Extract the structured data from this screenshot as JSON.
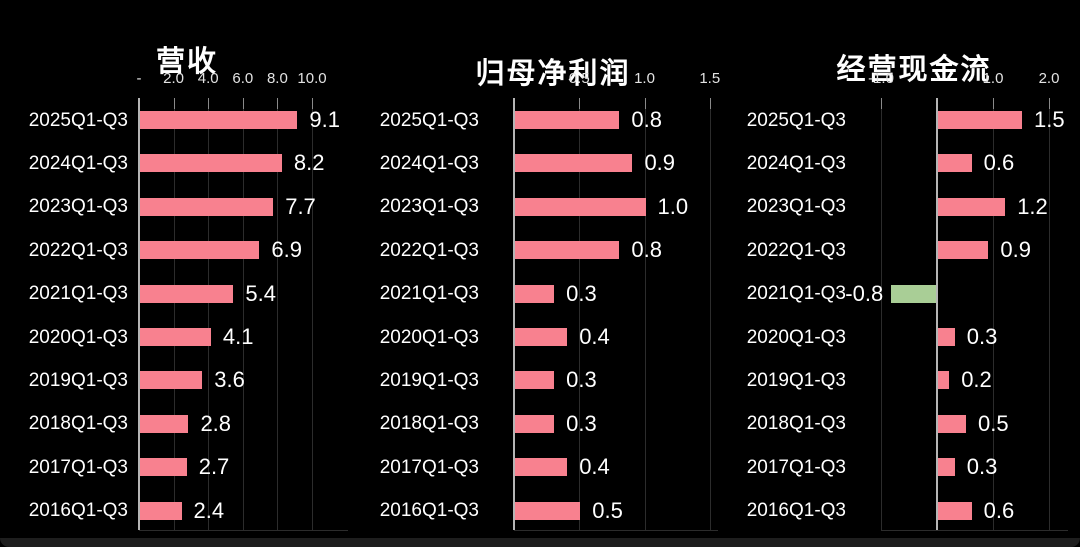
{
  "page": {
    "background": "#000000",
    "bottom_edge_color": "#1e1e1e"
  },
  "colors": {
    "bar_positive": "#F8818F",
    "bar_negative": "#A9CE96",
    "text": "#FFFFFF",
    "grid": "#2c2c2c",
    "tick": "#8a8a8a",
    "axis": "#b5b5b5"
  },
  "chart_data": [
    {
      "type": "bar",
      "orientation": "horizontal",
      "title": "营收",
      "grid": true,
      "legend": null,
      "xlim": [
        0,
        10
      ],
      "tick_labels": [
        "-",
        "2.0",
        "4.0",
        "6.0",
        "8.0",
        "10.0"
      ],
      "tick_values": [
        0,
        2,
        4,
        6,
        8,
        10
      ],
      "categories": [
        "2025Q1-Q3",
        "2024Q1-Q3",
        "2023Q1-Q3",
        "2022Q1-Q3",
        "2021Q1-Q3",
        "2020Q1-Q3",
        "2019Q1-Q3",
        "2018Q1-Q3",
        "2017Q1-Q3",
        "2016Q1-Q3"
      ],
      "values": [
        9.1,
        8.2,
        7.7,
        6.9,
        5.4,
        4.1,
        3.6,
        2.8,
        2.7,
        2.4
      ],
      "value_labels": [
        "9.1",
        "8.2",
        "7.7",
        "6.9",
        "5.4",
        "4.1",
        "3.6",
        "2.8",
        "2.7",
        "2.4"
      ]
    },
    {
      "type": "bar",
      "orientation": "horizontal",
      "title": "归母净利润",
      "grid": true,
      "legend": null,
      "xlim": [
        0,
        1.5
      ],
      "tick_labels": [
        "-",
        "0.5",
        "1.0",
        "1.5"
      ],
      "tick_values": [
        0,
        0.5,
        1,
        1.5
      ],
      "categories": [
        "2025Q1-Q3",
        "2024Q1-Q3",
        "2023Q1-Q3",
        "2022Q1-Q3",
        "2021Q1-Q3",
        "2020Q1-Q3",
        "2019Q1-Q3",
        "2018Q1-Q3",
        "2017Q1-Q3",
        "2016Q1-Q3"
      ],
      "values": [
        0.8,
        0.9,
        1.0,
        0.8,
        0.3,
        0.4,
        0.3,
        0.3,
        0.4,
        0.5
      ],
      "value_labels": [
        "0.8",
        "0.9",
        "1.0",
        "0.8",
        "0.3",
        "0.4",
        "0.3",
        "0.3",
        "0.4",
        "0.5"
      ]
    },
    {
      "type": "bar",
      "orientation": "horizontal",
      "title": "经营现金流",
      "grid": true,
      "legend": null,
      "xlim": [
        -1,
        2
      ],
      "tick_labels": [
        "-1.0",
        "-",
        "1.0",
        "2.0"
      ],
      "tick_values": [
        -1,
        0,
        1,
        2
      ],
      "categories": [
        "2025Q1-Q3",
        "2024Q1-Q3",
        "2023Q1-Q3",
        "2022Q1-Q3",
        "2021Q1-Q3",
        "2020Q1-Q3",
        "2019Q1-Q3",
        "2018Q1-Q3",
        "2017Q1-Q3",
        "2016Q1-Q3"
      ],
      "values": [
        1.5,
        0.6,
        1.2,
        0.9,
        -0.8,
        0.3,
        0.2,
        0.5,
        0.3,
        0.6
      ],
      "value_labels": [
        "1.5",
        "0.6",
        "1.2",
        "0.9",
        "-0.8",
        "0.3",
        "0.2",
        "0.5",
        "0.3",
        "0.6"
      ]
    }
  ]
}
